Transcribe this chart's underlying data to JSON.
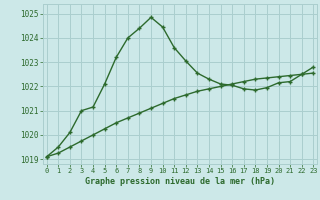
{
  "line1_x": [
    0,
    1,
    2,
    3,
    4,
    5,
    6,
    7,
    8,
    9,
    10,
    11,
    12,
    13,
    14,
    15,
    16,
    17,
    18,
    19,
    20,
    21,
    22,
    23
  ],
  "line1_y": [
    1019.1,
    1019.5,
    1020.1,
    1021.0,
    1021.15,
    1022.1,
    1023.2,
    1024.0,
    1024.4,
    1024.85,
    1024.45,
    1023.6,
    1023.05,
    1022.55,
    1022.3,
    1022.1,
    1022.05,
    1021.9,
    1021.85,
    1021.95,
    1022.15,
    1022.2,
    1022.5,
    1022.8
  ],
  "line2_x": [
    0,
    1,
    2,
    3,
    4,
    5,
    6,
    7,
    8,
    9,
    10,
    11,
    12,
    13,
    14,
    15,
    16,
    17,
    18,
    19,
    20,
    21,
    22,
    23
  ],
  "line2_y": [
    1019.1,
    1019.25,
    1019.5,
    1019.75,
    1020.0,
    1020.25,
    1020.5,
    1020.7,
    1020.9,
    1021.1,
    1021.3,
    1021.5,
    1021.65,
    1021.8,
    1021.9,
    1022.0,
    1022.1,
    1022.2,
    1022.3,
    1022.35,
    1022.4,
    1022.45,
    1022.5,
    1022.55
  ],
  "line_color": "#2d6a2d",
  "bg_color": "#cce8e8",
  "grid_color": "#aacece",
  "xlabel": "Graphe pression niveau de la mer (hPa)",
  "ylim": [
    1018.8,
    1025.4
  ],
  "yticks": [
    1019,
    1020,
    1021,
    1022,
    1023,
    1024,
    1025
  ],
  "xticks": [
    0,
    1,
    2,
    3,
    4,
    5,
    6,
    7,
    8,
    9,
    10,
    11,
    12,
    13,
    14,
    15,
    16,
    17,
    18,
    19,
    20,
    21,
    22,
    23
  ]
}
